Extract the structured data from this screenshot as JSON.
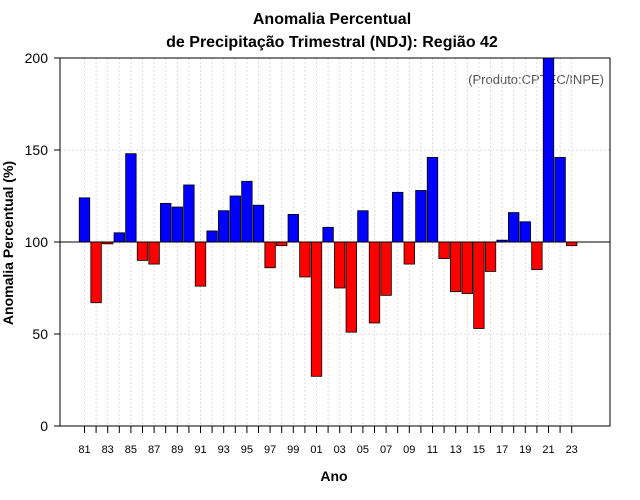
{
  "chart_data": {
    "type": "bar",
    "title": [
      "Anomalia Percentual",
      "de Precipitação Trimestral (NDJ): Região 42"
    ],
    "xlabel": "Ano",
    "ylabel": "Anomalia Percentual (%)",
    "credit": "(Produto:CPTEC/INPE)",
    "baseline": 100,
    "ylim": [
      0,
      200
    ],
    "yticks": [
      "0",
      "50",
      "100",
      "150",
      "200"
    ],
    "categories": [
      "81",
      "82",
      "83",
      "84",
      "85",
      "86",
      "87",
      "88",
      "89",
      "90",
      "91",
      "92",
      "93",
      "94",
      "95",
      "96",
      "97",
      "98",
      "99",
      "00",
      "01",
      "02",
      "03",
      "04",
      "05",
      "06",
      "07",
      "08",
      "09",
      "10",
      "11",
      "12",
      "13",
      "14",
      "15",
      "16",
      "17",
      "18",
      "19",
      "20",
      "21",
      "22",
      "23"
    ],
    "xtick_labels": [
      "81",
      "83",
      "85",
      "87",
      "89",
      "91",
      "93",
      "95",
      "97",
      "99",
      "01",
      "03",
      "05",
      "07",
      "09",
      "11",
      "13",
      "15",
      "17",
      "19",
      "21",
      "23"
    ],
    "values": [
      124,
      67,
      99,
      105,
      148,
      90,
      88,
      121,
      119,
      131,
      76,
      106,
      117,
      125,
      133,
      120,
      86,
      98,
      115,
      81,
      27,
      108,
      75,
      51,
      117,
      56,
      71,
      127,
      88,
      128,
      146,
      91,
      73,
      72,
      53,
      84,
      101,
      116,
      111,
      85,
      200,
      146,
      98
    ],
    "colors": {
      "above": "#0000ff",
      "below": "#ff0000"
    },
    "grid": true
  }
}
